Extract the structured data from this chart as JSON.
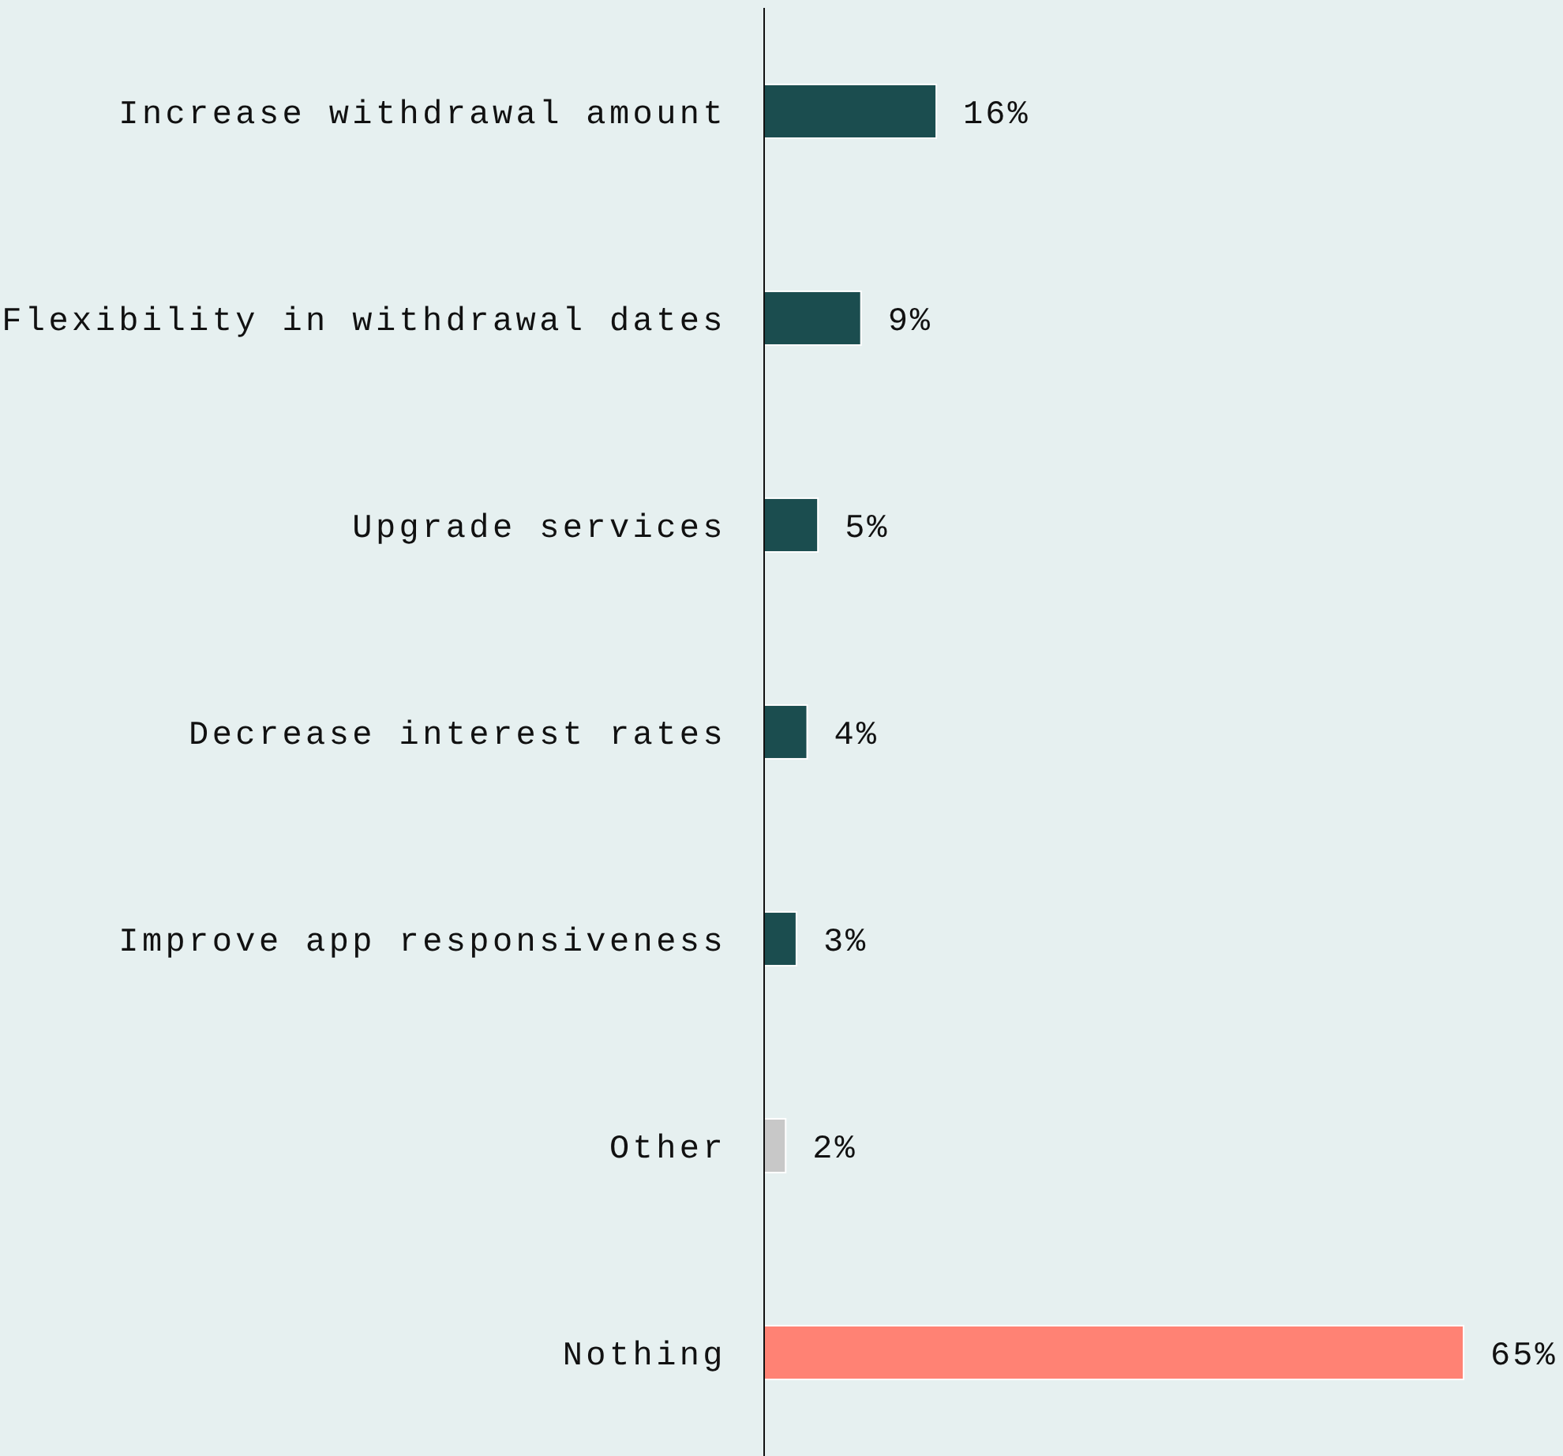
{
  "chart_data": {
    "type": "bar",
    "orientation": "horizontal",
    "categories": [
      "Increase withdrawal amount",
      "Flexibility in withdrawal dates",
      "Upgrade services",
      "Decrease interest rates",
      "Improve app responsiveness",
      "Other",
      "Nothing"
    ],
    "values": [
      16,
      9,
      5,
      4,
      3,
      2,
      65
    ],
    "value_labels": [
      "16%",
      "9%",
      "5%",
      "4%",
      "3%",
      "2%",
      "65%"
    ],
    "colors": [
      "#1b4d4f",
      "#1b4d4f",
      "#1b4d4f",
      "#1b4d4f",
      "#1b4d4f",
      "#c8c8c8",
      "#ff8274"
    ],
    "xlim": [
      0,
      65
    ],
    "tick_labels": "y"
  }
}
